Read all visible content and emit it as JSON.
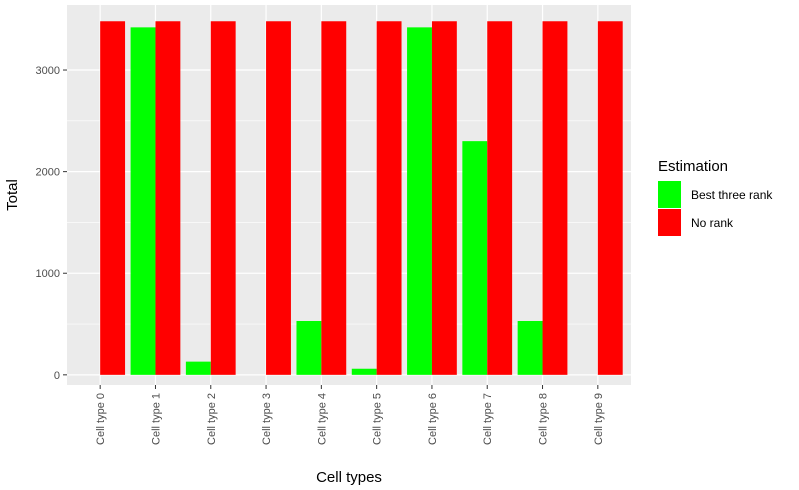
{
  "chart_data": {
    "type": "bar",
    "xlabel": "Cell types",
    "ylabel": "Total",
    "categories": [
      "Cell type 0",
      "Cell type 1",
      "Cell type 2",
      "Cell type 3",
      "Cell type 4",
      "Cell type 5",
      "Cell type 6",
      "Cell type 7",
      "Cell type 8",
      "Cell type 9"
    ],
    "series": [
      {
        "name": "Best three rank",
        "color": "#00ff00",
        "values": [
          0,
          3420,
          130,
          0,
          530,
          60,
          3420,
          2300,
          530,
          0
        ]
      },
      {
        "name": "No rank",
        "color": "#ff0000",
        "values": [
          3480,
          3480,
          3480,
          3480,
          3480,
          3480,
          3480,
          3480,
          3480,
          3480
        ]
      }
    ],
    "ylim": [
      -100,
      3640
    ],
    "yticks": [
      0,
      1000,
      2000,
      3000
    ],
    "ytick_labels": [
      "0",
      "1000",
      "2000",
      "3000"
    ],
    "grid": true,
    "legend": {
      "title": "Estimation",
      "position": "right"
    },
    "panel_background": "#ebebeb",
    "grid_color": "#ffffff"
  }
}
